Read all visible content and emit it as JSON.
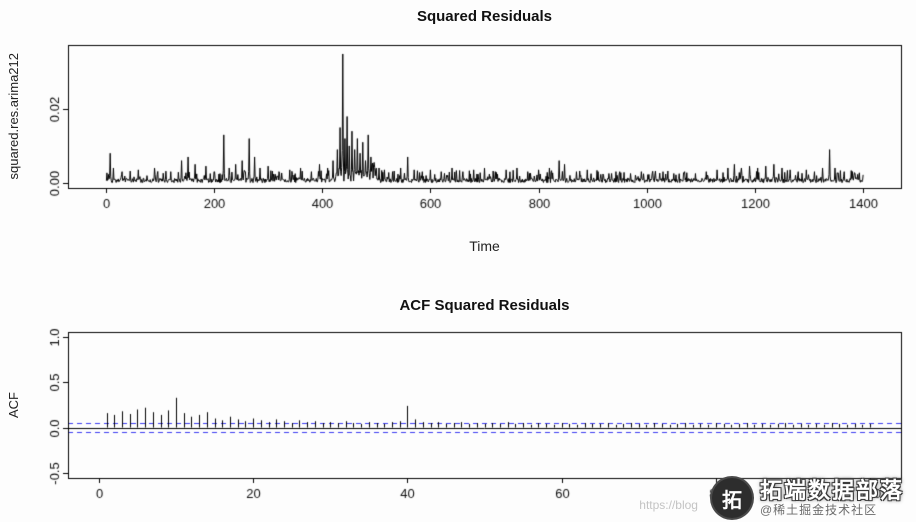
{
  "chart_data": [
    {
      "type": "line",
      "title": "Squared Residuals",
      "xlabel": "Time",
      "ylabel": "squared.res.arima212",
      "xlim": [
        0,
        1400
      ],
      "ylim": [
        0,
        0.036
      ],
      "xticks": [
        0,
        200,
        400,
        600,
        800,
        1000,
        1200,
        1400
      ],
      "xtick_labels": [
        "0",
        "200",
        "400",
        "600",
        "800",
        "1000",
        "1200",
        "1400"
      ],
      "yticks": [
        0.0,
        0.02
      ],
      "ytick_labels": [
        "0.00",
        "0.02"
      ],
      "n_points": 1400,
      "noise_seed": 42,
      "baseline_max": 0.0012,
      "elevated_region": {
        "from": 425,
        "to": 500,
        "extra": 0.003
      },
      "line_color": "#000000",
      "spikes": [
        [
          8,
          0.008
        ],
        [
          14,
          0.004
        ],
        [
          30,
          0.003
        ],
        [
          60,
          0.0035
        ],
        [
          90,
          0.004
        ],
        [
          120,
          0.003
        ],
        [
          140,
          0.006
        ],
        [
          152,
          0.007
        ],
        [
          165,
          0.005
        ],
        [
          185,
          0.0045
        ],
        [
          200,
          0.003
        ],
        [
          218,
          0.013
        ],
        [
          228,
          0.004
        ],
        [
          240,
          0.005
        ],
        [
          252,
          0.006
        ],
        [
          265,
          0.012
        ],
        [
          275,
          0.007
        ],
        [
          285,
          0.004
        ],
        [
          300,
          0.0045
        ],
        [
          320,
          0.003
        ],
        [
          340,
          0.0035
        ],
        [
          360,
          0.004
        ],
        [
          380,
          0.003
        ],
        [
          395,
          0.005
        ],
        [
          410,
          0.004
        ],
        [
          420,
          0.006
        ],
        [
          428,
          0.009
        ],
        [
          433,
          0.015
        ],
        [
          438,
          0.035
        ],
        [
          442,
          0.012
        ],
        [
          446,
          0.018
        ],
        [
          450,
          0.01
        ],
        [
          455,
          0.014
        ],
        [
          460,
          0.009
        ],
        [
          465,
          0.012
        ],
        [
          470,
          0.008
        ],
        [
          475,
          0.011
        ],
        [
          480,
          0.006
        ],
        [
          485,
          0.013
        ],
        [
          490,
          0.007
        ],
        [
          495,
          0.005
        ],
        [
          505,
          0.004
        ],
        [
          515,
          0.0035
        ],
        [
          530,
          0.003
        ],
        [
          545,
          0.004
        ],
        [
          558,
          0.007
        ],
        [
          570,
          0.0035
        ],
        [
          585,
          0.003
        ],
        [
          600,
          0.0035
        ],
        [
          620,
          0.003
        ],
        [
          640,
          0.004
        ],
        [
          660,
          0.003
        ],
        [
          680,
          0.0035
        ],
        [
          700,
          0.004
        ],
        [
          720,
          0.003
        ],
        [
          740,
          0.0035
        ],
        [
          760,
          0.004
        ],
        [
          780,
          0.003
        ],
        [
          800,
          0.0035
        ],
        [
          820,
          0.004
        ],
        [
          838,
          0.006
        ],
        [
          848,
          0.005
        ],
        [
          870,
          0.003
        ],
        [
          890,
          0.0035
        ],
        [
          910,
          0.003
        ],
        [
          930,
          0.0025
        ],
        [
          950,
          0.003
        ],
        [
          970,
          0.0025
        ],
        [
          990,
          0.003
        ],
        [
          1010,
          0.0025
        ],
        [
          1030,
          0.003
        ],
        [
          1050,
          0.0025
        ],
        [
          1070,
          0.003
        ],
        [
          1090,
          0.0025
        ],
        [
          1110,
          0.003
        ],
        [
          1130,
          0.0035
        ],
        [
          1150,
          0.004
        ],
        [
          1162,
          0.005
        ],
        [
          1175,
          0.004
        ],
        [
          1190,
          0.0045
        ],
        [
          1205,
          0.004
        ],
        [
          1220,
          0.0045
        ],
        [
          1235,
          0.005
        ],
        [
          1250,
          0.004
        ],
        [
          1265,
          0.0035
        ],
        [
          1280,
          0.003
        ],
        [
          1295,
          0.0035
        ],
        [
          1310,
          0.003
        ],
        [
          1325,
          0.004
        ],
        [
          1338,
          0.009
        ],
        [
          1348,
          0.004
        ],
        [
          1365,
          0.003
        ],
        [
          1385,
          0.0025
        ]
      ]
    },
    {
      "type": "bar",
      "title": "ACF Squared Residuals",
      "xlabel": "",
      "ylabel": "ACF",
      "xlim": [
        0,
        100
      ],
      "ylim": [
        -0.5,
        1.0
      ],
      "xticks": [
        0,
        20,
        40,
        60,
        80,
        100
      ],
      "xtick_labels": [
        "0",
        "20",
        "40",
        "60",
        "80",
        "100"
      ],
      "yticks": [
        -0.5,
        0.0,
        0.5,
        1.0
      ],
      "ytick_labels": [
        "-0.5",
        "0.0",
        "0.5",
        "1.0"
      ],
      "lag_start": 1,
      "conf_level": 0.05,
      "conf_color": "#3a3af0",
      "bar_color": "#000000",
      "values": [
        0.16,
        0.14,
        0.18,
        0.15,
        0.2,
        0.22,
        0.17,
        0.14,
        0.19,
        0.33,
        0.16,
        0.12,
        0.14,
        0.17,
        0.1,
        0.08,
        0.12,
        0.09,
        0.07,
        0.1,
        0.08,
        0.06,
        0.09,
        0.07,
        0.05,
        0.08,
        0.06,
        0.07,
        0.05,
        0.06,
        0.05,
        0.07,
        0.05,
        0.04,
        0.06,
        0.05,
        0.04,
        0.06,
        0.07,
        0.24,
        0.09,
        0.06,
        0.05,
        0.06,
        0.04,
        0.05,
        0.06,
        0.04,
        0.05,
        0.04,
        0.05,
        0.04,
        0.06,
        0.04,
        0.05,
        0.03,
        0.05,
        0.04,
        0.03,
        0.05,
        0.04,
        0.03,
        0.05,
        0.04,
        0.04,
        0.05,
        0.03,
        0.04,
        0.05,
        0.04,
        0.03,
        0.05,
        0.04,
        0.03,
        0.04,
        0.05,
        0.03,
        0.04,
        0.03,
        0.05,
        0.04,
        0.03,
        0.04,
        0.05,
        0.03,
        0.04,
        0.03,
        0.04,
        0.05,
        0.03,
        0.04,
        0.03,
        0.04,
        0.03,
        0.05,
        0.04,
        0.03,
        0.04,
        0.03,
        0.04
      ]
    }
  ],
  "watermark": {
    "logo_char": "拓",
    "line1": "拓端数据部落",
    "line2": "@稀土掘金技术社区",
    "url": "https://blog"
  }
}
